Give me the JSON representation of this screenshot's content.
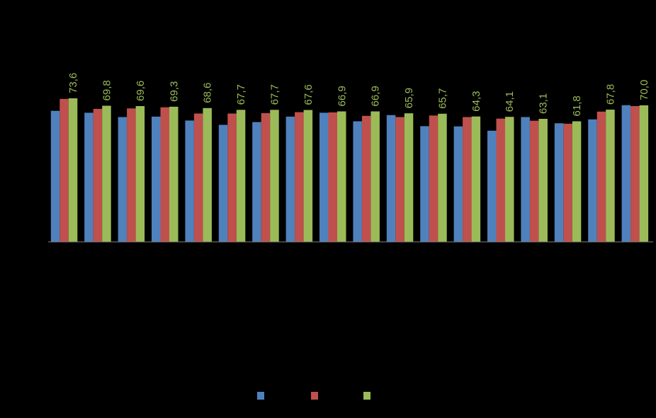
{
  "chart_data": {
    "type": "bar",
    "categories": [
      "",
      "",
      "",
      "",
      "",
      "",
      "",
      "",
      "",
      "",
      "",
      "",
      "",
      "",
      "",
      "",
      "",
      ""
    ],
    "series": [
      {
        "color": "#4f81bd",
        "values": [
          67.2,
          66.2,
          64.0,
          64.2,
          62.2,
          60.0,
          61.4,
          64.2,
          66.2,
          61.8,
          65.0,
          59.3,
          59.2,
          57.0,
          64.0,
          60.8,
          62.8,
          70.1
        ]
      },
      {
        "color": "#c0504d",
        "values": [
          73.3,
          68.2,
          68.4,
          69.0,
          65.8,
          65.8,
          66.0,
          66.5,
          66.4,
          64.6,
          64.0,
          64.8,
          64.0,
          63.2,
          62.1,
          60.6,
          66.8,
          69.6
        ]
      },
      {
        "color": "#9bbb59",
        "values": [
          73.6,
          69.8,
          69.6,
          69.3,
          68.6,
          67.7,
          67.7,
          67.6,
          66.9,
          66.9,
          65.9,
          65.7,
          64.3,
          64.1,
          63.1,
          61.8,
          67.8,
          70.0
        ],
        "labels": [
          "73,6",
          "69,8",
          "69,6",
          "69,3",
          "68,6",
          "67,7",
          "67,7",
          "67,6",
          "66,9",
          "66,9",
          "65,9",
          "65,7",
          "64,3",
          "64,1",
          "63,1",
          "61,8",
          "67,8",
          "70,0"
        ]
      }
    ],
    "ylim": [
      0,
      73.6
    ],
    "xlabel": "",
    "ylabel": "",
    "title": "",
    "grid": false,
    "legend": "bottom-center",
    "axis_color": "#7f7f7f",
    "background": "#000000"
  }
}
